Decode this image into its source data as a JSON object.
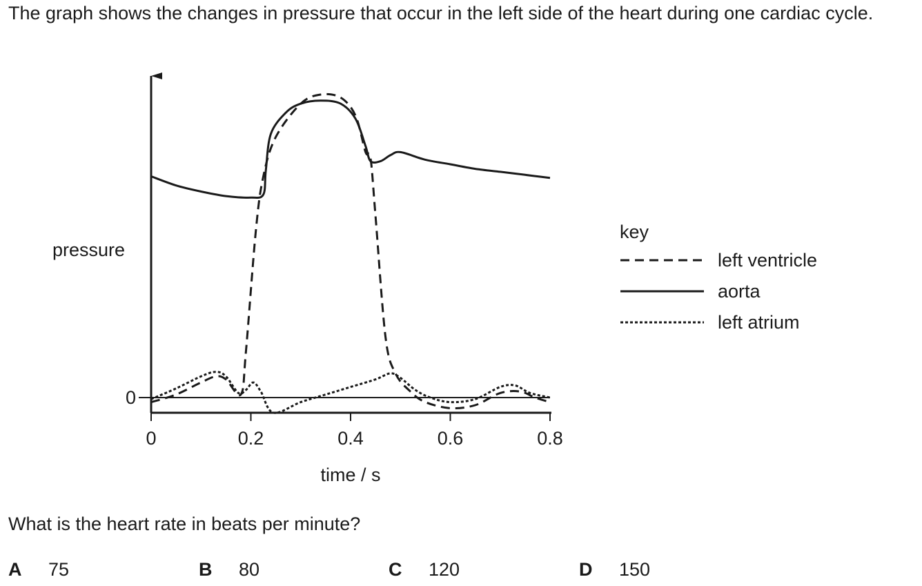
{
  "intro": "The graph shows the changes in pressure that occur in the left side of the heart during one cardiac cycle.",
  "question": "What is the heart rate in beats per minute?",
  "options": [
    {
      "letter": "A",
      "value": "75"
    },
    {
      "letter": "B",
      "value": "80"
    },
    {
      "letter": "C",
      "value": "120"
    },
    {
      "letter": "D",
      "value": "150"
    }
  ],
  "chart_data": {
    "type": "line",
    "xlabel": "time / s",
    "ylabel": "pressure",
    "xlim": [
      0,
      0.8
    ],
    "ylim": [
      -0.3,
      10
    ],
    "x_ticks": [
      "0",
      "0.2",
      "0.4",
      "0.6",
      "0.8"
    ],
    "y_ticks": [
      "0"
    ],
    "grid": false,
    "legend": {
      "title": "key",
      "position": "right",
      "entries": [
        "left ventricle",
        "aorta",
        "left atrium"
      ]
    },
    "series": [
      {
        "name": "left ventricle",
        "style": "dashed",
        "color": "#1a1a1a",
        "points": [
          [
            0.0,
            -0.15
          ],
          [
            0.05,
            0.1
          ],
          [
            0.1,
            0.5
          ],
          [
            0.13,
            0.7
          ],
          [
            0.15,
            0.6
          ],
          [
            0.18,
            0.1
          ],
          [
            0.19,
            1.5
          ],
          [
            0.21,
            5.5
          ],
          [
            0.225,
            7.3
          ],
          [
            0.25,
            8.6
          ],
          [
            0.3,
            9.7
          ],
          [
            0.34,
            10.0
          ],
          [
            0.38,
            9.9
          ],
          [
            0.41,
            9.3
          ],
          [
            0.43,
            8.1
          ],
          [
            0.44,
            7.9
          ],
          [
            0.45,
            6.0
          ],
          [
            0.47,
            2.0
          ],
          [
            0.49,
            0.8
          ],
          [
            0.52,
            0.2
          ],
          [
            0.55,
            -0.15
          ],
          [
            0.6,
            -0.35
          ],
          [
            0.65,
            -0.25
          ],
          [
            0.7,
            0.15
          ],
          [
            0.74,
            0.2
          ],
          [
            0.77,
            0.0
          ],
          [
            0.8,
            -0.15
          ]
        ]
      },
      {
        "name": "aorta",
        "style": "solid",
        "color": "#1a1a1a",
        "points": [
          [
            0.0,
            7.3
          ],
          [
            0.05,
            7.0
          ],
          [
            0.1,
            6.8
          ],
          [
            0.15,
            6.65
          ],
          [
            0.2,
            6.6
          ],
          [
            0.225,
            6.7
          ],
          [
            0.23,
            7.5
          ],
          [
            0.24,
            8.7
          ],
          [
            0.27,
            9.4
          ],
          [
            0.3,
            9.7
          ],
          [
            0.34,
            9.8
          ],
          [
            0.38,
            9.7
          ],
          [
            0.41,
            9.2
          ],
          [
            0.43,
            8.3
          ],
          [
            0.44,
            7.8
          ],
          [
            0.46,
            7.8
          ],
          [
            0.48,
            8.0
          ],
          [
            0.5,
            8.1
          ],
          [
            0.55,
            7.85
          ],
          [
            0.6,
            7.7
          ],
          [
            0.65,
            7.55
          ],
          [
            0.7,
            7.45
          ],
          [
            0.75,
            7.35
          ],
          [
            0.8,
            7.25
          ]
        ]
      },
      {
        "name": "left atrium",
        "style": "dotted",
        "color": "#1a1a1a",
        "points": [
          [
            0.0,
            -0.05
          ],
          [
            0.05,
            0.3
          ],
          [
            0.1,
            0.7
          ],
          [
            0.13,
            0.85
          ],
          [
            0.15,
            0.7
          ],
          [
            0.175,
            0.15
          ],
          [
            0.19,
            0.25
          ],
          [
            0.205,
            0.5
          ],
          [
            0.22,
            0.2
          ],
          [
            0.245,
            -0.5
          ],
          [
            0.3,
            -0.15
          ],
          [
            0.35,
            0.1
          ],
          [
            0.4,
            0.35
          ],
          [
            0.45,
            0.6
          ],
          [
            0.48,
            0.8
          ],
          [
            0.5,
            0.65
          ],
          [
            0.53,
            0.25
          ],
          [
            0.56,
            0.0
          ],
          [
            0.6,
            -0.15
          ],
          [
            0.65,
            -0.05
          ],
          [
            0.7,
            0.35
          ],
          [
            0.73,
            0.4
          ],
          [
            0.76,
            0.15
          ],
          [
            0.8,
            0.0
          ]
        ]
      }
    ]
  }
}
